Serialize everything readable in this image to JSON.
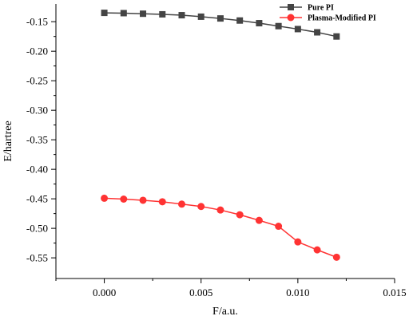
{
  "chart_data": {
    "type": "line",
    "xlabel": "F/a.u.",
    "ylabel": "E/hartree",
    "xlim": [
      -0.0025,
      0.015
    ],
    "ylim": [
      -0.585,
      -0.12
    ],
    "xticks": [
      0.0,
      0.005,
      0.01,
      0.015
    ],
    "xtick_labels": [
      "0.000",
      "0.005",
      "0.010",
      "0.015"
    ],
    "yticks": [
      -0.15,
      -0.2,
      -0.25,
      -0.3,
      -0.35,
      -0.4,
      -0.45,
      -0.5,
      -0.55
    ],
    "ytick_labels": [
      "-0.15",
      "-0.20",
      "-0.25",
      "-0.30",
      "-0.35",
      "-0.40",
      "-0.45",
      "-0.50",
      "-0.55"
    ],
    "grid": false,
    "legend_position": "top-right",
    "x": [
      0.0,
      0.001,
      0.002,
      0.003,
      0.004,
      0.005,
      0.006,
      0.007,
      0.008,
      0.009,
      0.01,
      0.011,
      0.012
    ],
    "series": [
      {
        "name": "Pure PI",
        "color": "#444444",
        "marker": "square",
        "values": [
          -0.135,
          -0.1355,
          -0.1365,
          -0.1375,
          -0.139,
          -0.1415,
          -0.1445,
          -0.148,
          -0.1525,
          -0.1575,
          -0.1625,
          -0.168,
          -0.175
        ]
      },
      {
        "name": "Plasma-Modified PI",
        "color": "#ff3333",
        "marker": "circle",
        "values": [
          -0.449,
          -0.4505,
          -0.4525,
          -0.455,
          -0.459,
          -0.463,
          -0.469,
          -0.477,
          -0.4865,
          -0.4965,
          -0.523,
          -0.5365,
          -0.549
        ]
      }
    ]
  }
}
